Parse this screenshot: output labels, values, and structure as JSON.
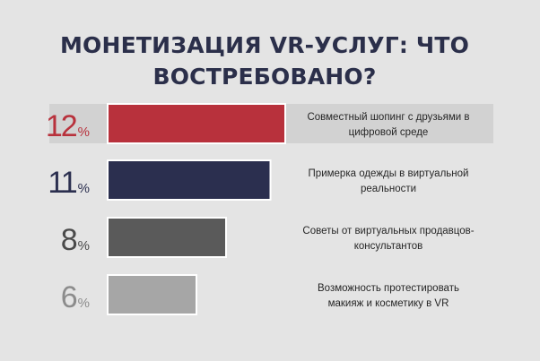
{
  "header": {
    "title_line1": "МОНЕТИЗАЦИЯ VR-УСЛУГ: ЧТО",
    "title_line2": "ВОСТРЕБОВАНО?"
  },
  "chart_data": {
    "type": "bar",
    "orientation": "horizontal",
    "title": "МОНЕТИЗАЦИЯ VR-УСЛУГ: ЧТО ВОСТРЕБОВАНО?",
    "unit": "%",
    "categories": [
      [
        "Совместный шопинг с друзьями в",
        "цифровой среде"
      ],
      [
        "Примерка одежды в виртуальной",
        "реальности"
      ],
      [
        "Советы от виртуальных продавцов-",
        "консультантов"
      ],
      [
        "Возможность протестировать",
        "макияж и косметику в VR"
      ]
    ],
    "values": [
      12,
      11,
      8,
      6
    ],
    "colors": [
      "#b8313c",
      "#2b2f4f",
      "#5a5a5a",
      "#a6a6a6"
    ],
    "value_label_colors": [
      "#b8313c",
      "#2b2f4f",
      "#4a4a4a",
      "#8c8c8c"
    ],
    "grid": false,
    "legend": "none"
  }
}
